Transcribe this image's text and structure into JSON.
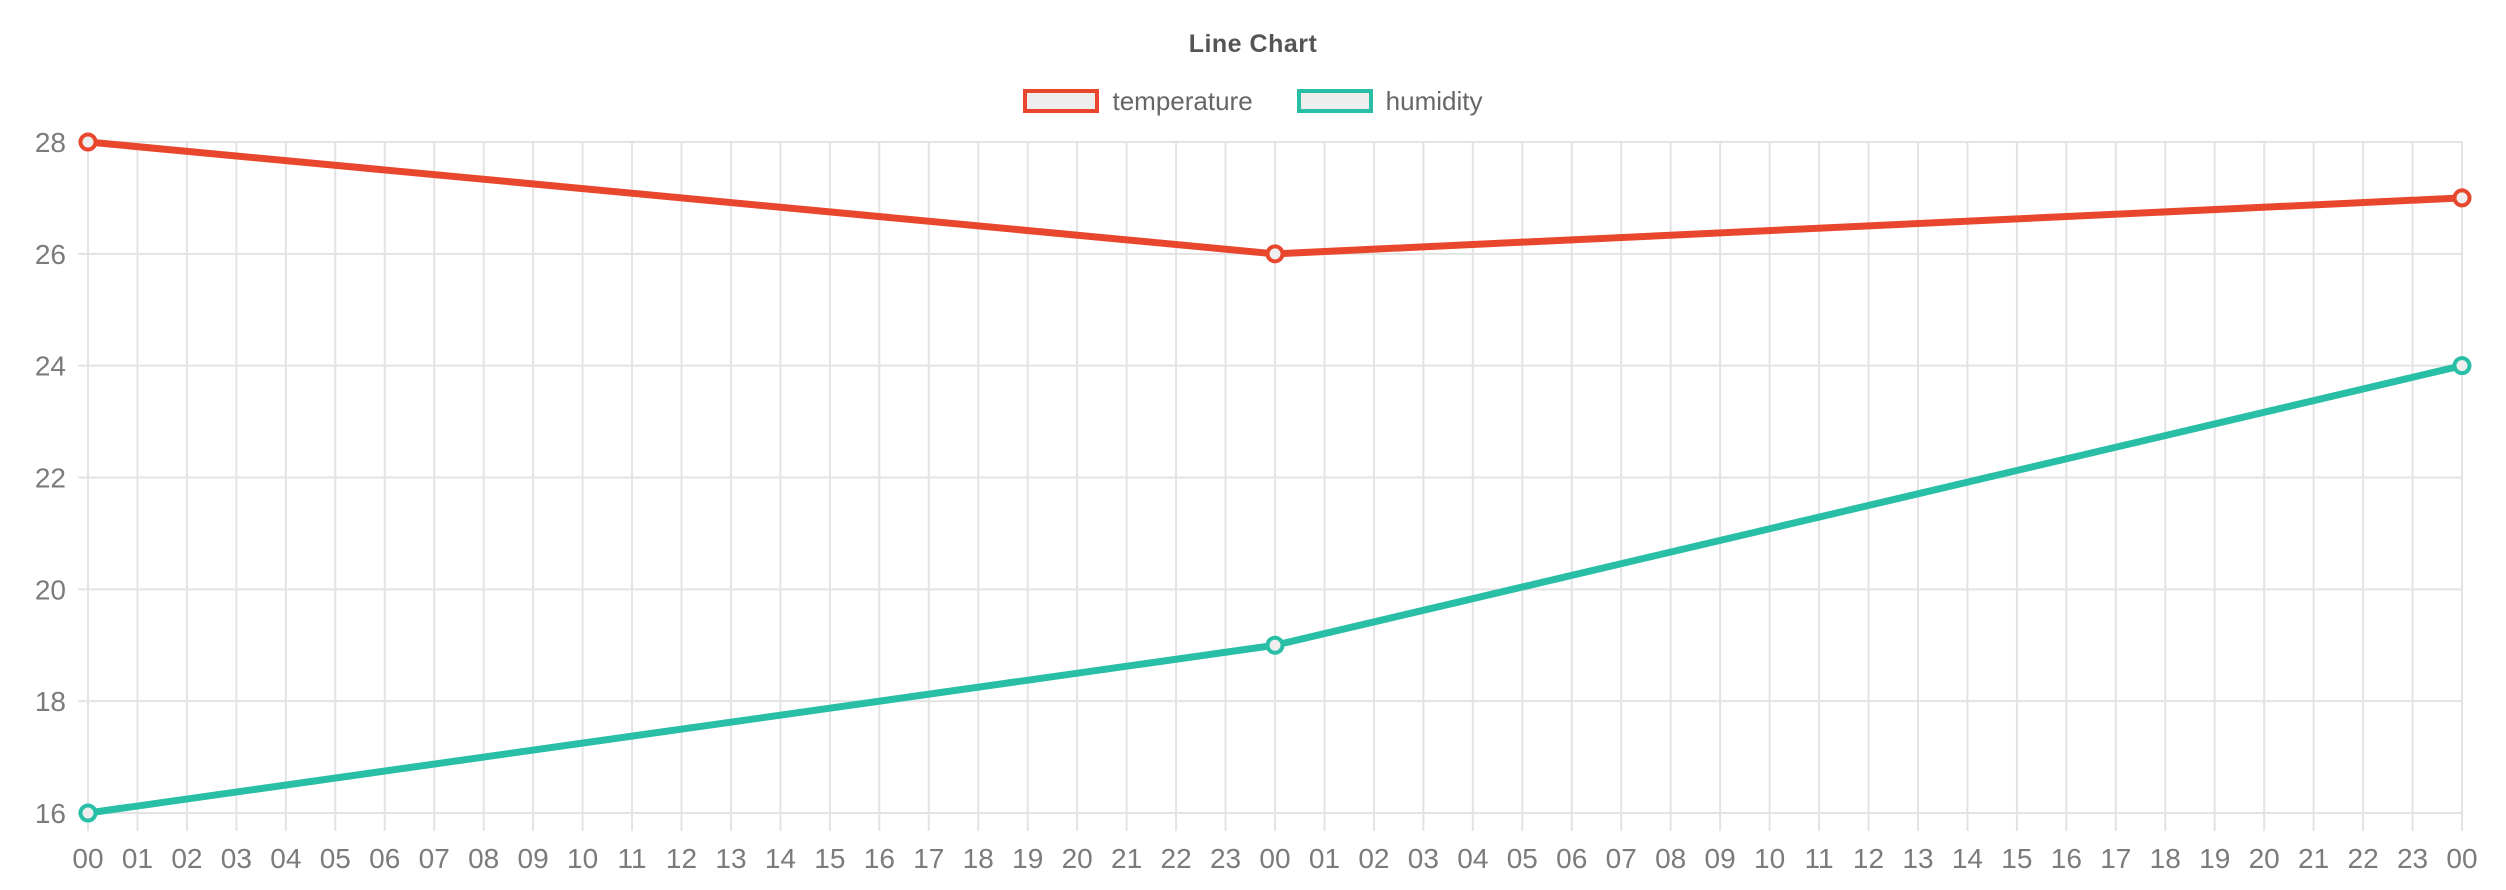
{
  "chart_data": {
    "type": "line",
    "title": "Line Chart",
    "categories": [
      "00",
      "01",
      "02",
      "03",
      "04",
      "05",
      "06",
      "07",
      "08",
      "09",
      "10",
      "11",
      "12",
      "13",
      "14",
      "15",
      "16",
      "17",
      "18",
      "19",
      "20",
      "21",
      "22",
      "23",
      "00",
      "01",
      "02",
      "03",
      "04",
      "05",
      "06",
      "07",
      "08",
      "09",
      "10",
      "11",
      "12",
      "13",
      "14",
      "15",
      "16",
      "17",
      "18",
      "19",
      "20",
      "21",
      "22",
      "23",
      "00"
    ],
    "series": [
      {
        "name": "temperature",
        "color": "#e8472e",
        "points": [
          {
            "x": 0,
            "y": 28
          },
          {
            "x": 24,
            "y": 26
          },
          {
            "x": 48,
            "y": 27
          }
        ]
      },
      {
        "name": "humidity",
        "color": "#29bfa7",
        "points": [
          {
            "x": 0,
            "y": 16
          },
          {
            "x": 24,
            "y": 19
          },
          {
            "x": 48,
            "y": 24
          }
        ]
      }
    ],
    "ylim": [
      16,
      28
    ],
    "y_ticks": [
      16,
      18,
      20,
      22,
      24,
      26,
      28
    ],
    "grid": true,
    "legend_position": "top",
    "colors": {
      "grid": "#e3e3e3",
      "axis_text": "#7b7b7b",
      "title_text": "#555555",
      "legend_text": "#666666",
      "swatch_fill": "#eeeeee",
      "point_fill": "#eeeeee",
      "background": "#ffffff"
    }
  }
}
